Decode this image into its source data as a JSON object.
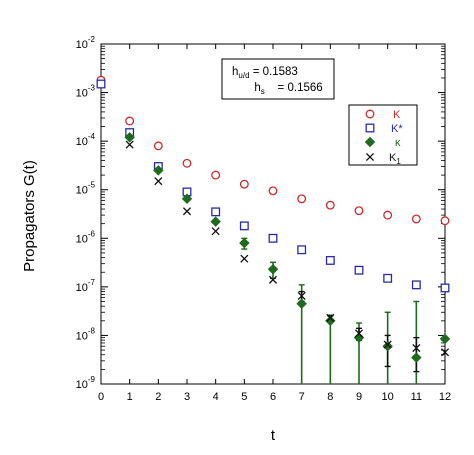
{
  "chart_data": {
    "type": "scatter",
    "xlabel": "t",
    "ylabel": "Propagators G(t)",
    "xlim": [
      0,
      12
    ],
    "ylim": [
      1e-09,
      0.01
    ],
    "yscale": "log",
    "x_ticks": [
      "0",
      "1",
      "2",
      "3",
      "4",
      "5",
      "6",
      "7",
      "8",
      "9",
      "10",
      "11",
      "12"
    ],
    "y_ticks": [
      {
        "value": 1e-09,
        "mant": "10",
        "exp": "-9"
      },
      {
        "value": 1e-08,
        "mant": "10",
        "exp": "-8"
      },
      {
        "value": 1e-07,
        "mant": "10",
        "exp": "-7"
      },
      {
        "value": 1e-06,
        "mant": "10",
        "exp": "-6"
      },
      {
        "value": 1e-05,
        "mant": "10",
        "exp": "-5"
      },
      {
        "value": 0.0001,
        "mant": "10",
        "exp": "-4"
      },
      {
        "value": 0.001,
        "mant": "10",
        "exp": "-3"
      },
      {
        "value": 0.01,
        "mant": "10",
        "exp": "-2"
      }
    ],
    "annotation": {
      "line1": {
        "sym": "h",
        "sub": "u/d",
        "val": " = 0.1583"
      },
      "line2": {
        "sym": "h",
        "sub": "s",
        "val": "    = 0.1566"
      }
    },
    "series": [
      {
        "name": "K",
        "marker": "circle-open",
        "color": "#cc2a2a",
        "x": [
          0,
          1,
          2,
          3,
          4,
          5,
          6,
          7,
          8,
          9,
          10,
          11,
          12
        ],
        "y": [
          0.0018,
          0.00026,
          8e-05,
          3.5e-05,
          2e-05,
          1.3e-05,
          9.5e-06,
          6.5e-06,
          4.8e-06,
          3.7e-06,
          3e-06,
          2.5e-06,
          2.3e-06
        ]
      },
      {
        "name": "K*",
        "marker": "square-open",
        "color": "#2a2aa8",
        "x": [
          0,
          1,
          2,
          3,
          4,
          5,
          6,
          7,
          8,
          9,
          10,
          11,
          12
        ],
        "y": [
          0.0015,
          0.00015,
          3e-05,
          9e-06,
          3.5e-06,
          1.8e-06,
          1e-06,
          5.8e-07,
          3.5e-07,
          2.2e-07,
          1.5e-07,
          1.1e-07,
          9.5e-08
        ]
      },
      {
        "name": "κ",
        "marker": "diamond-filled",
        "color": "#1e6b1e",
        "x": [
          1,
          2,
          3,
          4,
          5,
          6,
          7,
          8,
          9,
          10,
          11,
          12
        ],
        "y": [
          0.00012,
          2.5e-05,
          6.5e-06,
          2.2e-06,
          8e-07,
          2.3e-07,
          4.5e-08,
          2e-08,
          9e-09,
          6e-09,
          3.5e-09,
          8.5e-09
        ],
        "err_hi": [
          null,
          null,
          null,
          null,
          1e-06,
          3.2e-07,
          1.1e-07,
          2.5e-08,
          1.8e-08,
          3e-08,
          5e-08,
          null
        ],
        "err_lo": [
          null,
          null,
          null,
          null,
          6e-07,
          1.5e-07,
          1e-09,
          1e-09,
          1e-09,
          1e-09,
          1e-09,
          null
        ]
      },
      {
        "name": "K1",
        "label_main": "K",
        "label_sub": "1",
        "marker": "x",
        "color": "#111111",
        "x": [
          1,
          2,
          3,
          4,
          5,
          6,
          7,
          8,
          9,
          10,
          11,
          12
        ],
        "y": [
          8.5e-05,
          1.5e-05,
          3.6e-06,
          1.4e-06,
          3.8e-07,
          1.4e-07,
          6.5e-08,
          2.3e-08,
          1.1e-08,
          6.5e-09,
          5.5e-09,
          4.5e-09
        ],
        "err_hi": [
          null,
          null,
          null,
          null,
          null,
          null,
          8e-08,
          2.6e-08,
          1.4e-08,
          1e-08,
          9e-09,
          null
        ],
        "err_lo": [
          null,
          null,
          null,
          null,
          null,
          null,
          5e-08,
          2e-08,
          8e-09,
          2.3e-09,
          1.8e-09,
          null
        ]
      }
    ]
  }
}
